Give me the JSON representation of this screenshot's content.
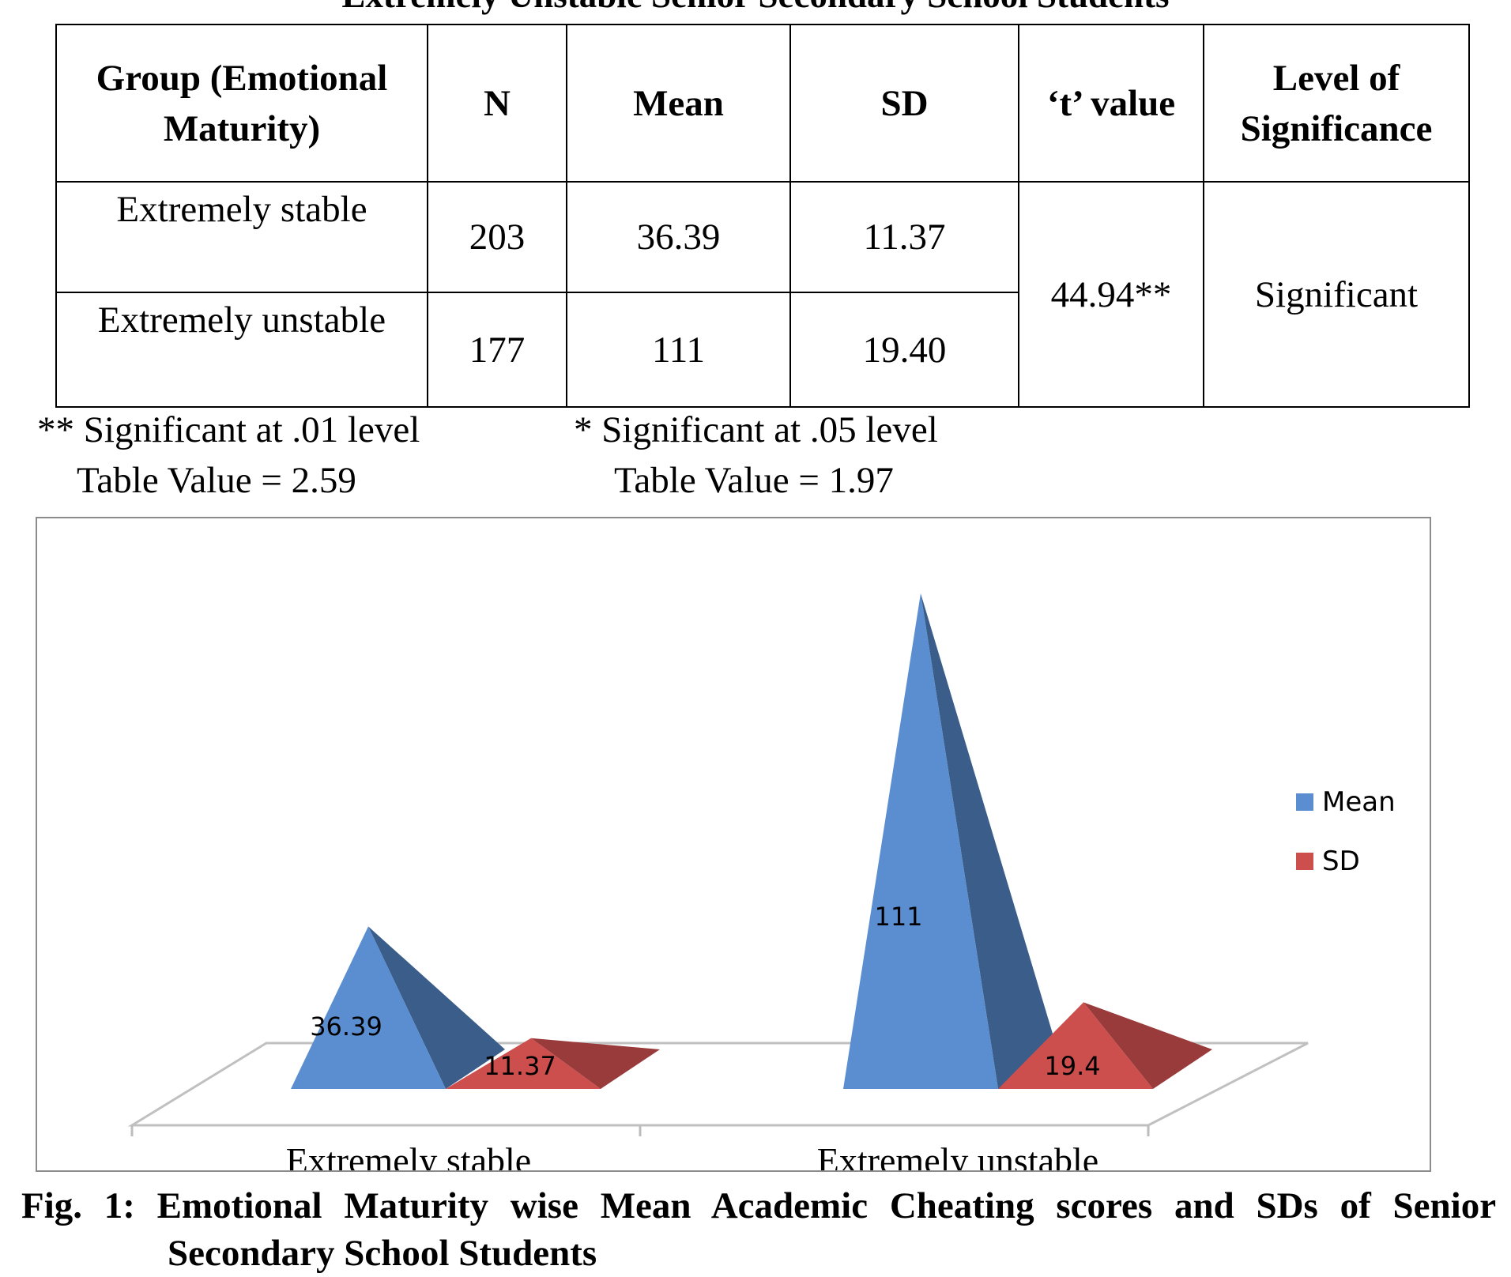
{
  "top_title": "Extremely Unstable Senior Secondary School Students",
  "table": {
    "headers": [
      "Group (Emotional Maturity)",
      "N",
      "Mean",
      "SD",
      "‘t’ value",
      "Level of Significance"
    ],
    "rows": [
      {
        "group": "Extremely stable",
        "n": "203",
        "mean": "36.39",
        "sd": "11.37"
      },
      {
        "group": "Extremely unstable",
        "n": "177",
        "mean": "111",
        "sd": "19.40"
      }
    ],
    "t_value": "44.94**",
    "significance": "Significant"
  },
  "notes": {
    "sig01": "** Significant at .01 level",
    "tv01": "Table Value = 2.59",
    "sig05": "* Significant at .05 level",
    "tv05": "Table Value = 1.97"
  },
  "chart_data": {
    "type": "bar",
    "style": "3d-pyramid",
    "categories": [
      "Extremely stable",
      "Extremely unstable"
    ],
    "series": [
      {
        "name": "Mean",
        "values": [
          36.39,
          111
        ],
        "labels": [
          "36.39",
          "111"
        ],
        "color": "#5A8ED0",
        "shade": "#3A5D8A"
      },
      {
        "name": "SD",
        "values": [
          11.37,
          19.4
        ],
        "labels": [
          "11.37",
          "19.4"
        ],
        "color": "#CC4E4D",
        "shade": "#9A3B3B"
      }
    ],
    "legend": {
      "position": "right"
    },
    "gridlines": false
  },
  "caption": {
    "line1": "Fig. 1: Emotional Maturity wise Mean Academic Cheating scores and SDs of Senior",
    "line2": "Secondary School Students"
  }
}
